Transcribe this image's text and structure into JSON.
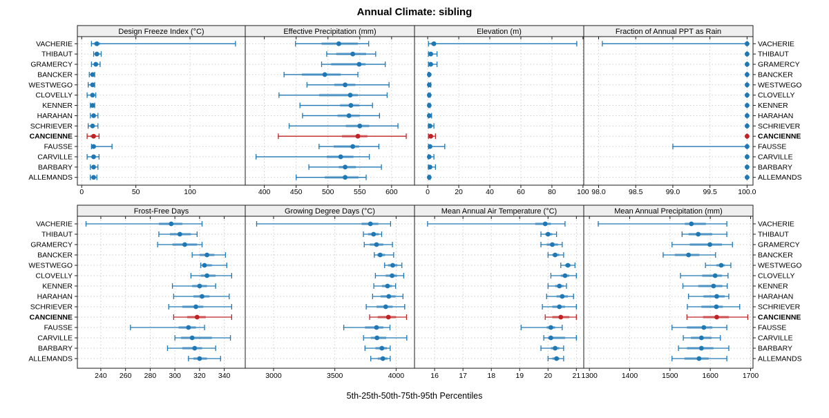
{
  "title": "Annual Climate: sibling",
  "caption": "5th-25th-50th-75th-95th Percentiles",
  "legend_note": "percentile whisker plot",
  "highlight_category": "CANCIENNE",
  "colors": {
    "series_blue": "#1f77b4",
    "highlight_red": "#bf2326",
    "band_alpha": 0.42,
    "grid": "#c9c9c9",
    "panel_border": "#1a1a1a",
    "header_bg": "#efefef",
    "plot_bg": "#ffffff"
  },
  "categories": [
    "VACHERIE",
    "THIBAUT",
    "GRAMERCY",
    "BANCKER",
    "WESTWEGO",
    "CLOVELLY",
    "KENNER",
    "HARAHAN",
    "SCHRIEVER",
    "CANCIENNE",
    "FAUSSE",
    "CARVILLE",
    "BARBARY",
    "ALLEMANDS"
  ],
  "chart_data": [
    {
      "type": "percentile-dotplot",
      "row": 0,
      "col": 0,
      "title": "Design Freeze Index (°C)",
      "xlim": [
        -4,
        151
      ],
      "ticks": [
        0,
        50,
        100
      ],
      "tick_labels": [
        "0",
        "50",
        "100"
      ],
      "percentiles": [
        "5th",
        "25th",
        "50th",
        "75th",
        "95th"
      ],
      "values": [
        [
          9,
          11,
          14,
          17,
          142
        ],
        [
          11,
          13,
          14,
          16,
          18
        ],
        [
          9,
          12,
          13,
          15,
          17
        ],
        [
          7,
          9,
          10,
          11,
          12
        ],
        [
          6,
          9,
          10,
          11,
          12
        ],
        [
          5,
          8,
          10,
          12,
          13
        ],
        [
          8,
          9,
          10,
          11,
          12
        ],
        [
          8,
          10,
          11,
          12,
          15
        ],
        [
          6,
          9,
          10,
          12,
          15
        ],
        [
          5,
          8,
          11,
          13,
          16
        ],
        [
          9,
          10,
          11,
          13,
          28
        ],
        [
          5,
          9,
          11,
          13,
          16
        ],
        [
          8,
          10,
          11,
          12,
          15
        ],
        [
          8,
          10,
          11,
          12,
          14
        ]
      ]
    },
    {
      "type": "percentile-dotplot",
      "row": 0,
      "col": 1,
      "title": "Effective Precipitation (mm)",
      "xlim": [
        370,
        636
      ],
      "ticks": [
        400,
        450,
        500,
        550,
        600
      ],
      "tick_labels": [
        "400",
        "450",
        "500",
        "550",
        "600"
      ],
      "percentiles": [
        "5th",
        "25th",
        "50th",
        "75th",
        "95th"
      ],
      "values": [
        [
          449,
          490,
          517,
          547,
          564
        ],
        [
          498,
          513,
          539,
          560,
          575
        ],
        [
          490,
          505,
          549,
          559,
          590
        ],
        [
          431,
          459,
          495,
          520,
          547
        ],
        [
          467,
          510,
          527,
          543,
          596
        ],
        [
          423,
          486,
          535,
          547,
          593
        ],
        [
          456,
          519,
          536,
          549,
          570
        ],
        [
          460,
          515,
          533,
          550,
          581
        ],
        [
          439,
          528,
          550,
          565,
          610
        ],
        [
          422,
          522,
          547,
          562,
          623
        ],
        [
          486,
          509,
          539,
          549,
          580
        ],
        [
          387,
          498,
          520,
          540,
          565
        ],
        [
          470,
          517,
          527,
          544,
          584
        ],
        [
          450,
          495,
          527,
          548,
          560
        ]
      ]
    },
    {
      "type": "percentile-dotplot",
      "row": 0,
      "col": 2,
      "title": "Elevation (m)",
      "xlim": [
        -8.5,
        100.5
      ],
      "ticks": [
        0,
        20,
        40,
        60,
        80,
        100
      ],
      "tick_labels": [
        "0",
        "20",
        "40",
        "60",
        "80",
        "100"
      ],
      "percentiles": [
        "5th",
        "25th",
        "50th",
        "75th",
        "95th"
      ],
      "values": [
        [
          0.5,
          2,
          4,
          5,
          96
        ],
        [
          0.5,
          1,
          2,
          3,
          6
        ],
        [
          0.5,
          1,
          2,
          3,
          6
        ],
        [
          0.5,
          0.5,
          1,
          1,
          1
        ],
        [
          0.5,
          0.5,
          1,
          1.5,
          2
        ],
        [
          0.5,
          0.5,
          1,
          1,
          1.5
        ],
        [
          0.5,
          0.5,
          1,
          1,
          1.5
        ],
        [
          0.5,
          1,
          1,
          2,
          2.5
        ],
        [
          0.5,
          1,
          1.5,
          2,
          4
        ],
        [
          0.5,
          1,
          2,
          3,
          5
        ],
        [
          0.5,
          1,
          1.5,
          2,
          11
        ],
        [
          0.5,
          1,
          1,
          2,
          4
        ],
        [
          0.5,
          1,
          1.5,
          2,
          5
        ],
        [
          0.5,
          0.5,
          1,
          1,
          1.5
        ]
      ]
    },
    {
      "type": "percentile-dotplot",
      "row": 0,
      "col": 3,
      "title": "Fraction of Annual PPT as Rain",
      "xlim": [
        97.8,
        100.08
      ],
      "ticks": [
        98.0,
        98.5,
        99.0,
        99.5,
        100.0
      ],
      "tick_labels": [
        "98.0",
        "98.5",
        "99.0",
        "99.5",
        "100.0"
      ],
      "percentiles": [
        "5th",
        "25th",
        "50th",
        "75th",
        "95th"
      ],
      "values": [
        [
          98.05,
          100,
          100,
          100,
          100
        ],
        [
          100,
          100,
          100,
          100,
          100
        ],
        [
          100,
          100,
          100,
          100,
          100
        ],
        [
          100,
          100,
          100,
          100,
          100
        ],
        [
          100,
          100,
          100,
          100,
          100
        ],
        [
          100,
          100,
          100,
          100,
          100
        ],
        [
          100,
          100,
          100,
          100,
          100
        ],
        [
          100,
          100,
          100,
          100,
          100
        ],
        [
          100,
          100,
          100,
          100,
          100
        ],
        [
          100,
          100,
          100,
          100,
          100
        ],
        [
          99.0,
          100,
          100,
          100,
          100
        ],
        [
          100,
          100,
          100,
          100,
          100
        ],
        [
          100,
          100,
          100,
          100,
          100
        ],
        [
          100,
          100,
          100,
          100,
          100
        ]
      ]
    },
    {
      "type": "percentile-dotplot",
      "row": 1,
      "col": 0,
      "title": "Frost-Free Days",
      "xlim": [
        221,
        357
      ],
      "ticks": [
        240,
        260,
        280,
        300,
        320,
        340
      ],
      "tick_labels": [
        "240",
        "260",
        "280",
        "300",
        "320",
        "340"
      ],
      "percentiles": [
        "5th",
        "25th",
        "50th",
        "75th",
        "95th"
      ],
      "values": [
        [
          228,
          287,
          297,
          306,
          322
        ],
        [
          287,
          296,
          304,
          313,
          318
        ],
        [
          286,
          298,
          308,
          318,
          322
        ],
        [
          314,
          320,
          326,
          332,
          341
        ],
        [
          321,
          322,
          324,
          330,
          342
        ],
        [
          313,
          321,
          326,
          333,
          346
        ],
        [
          298,
          314,
          320,
          326,
          333
        ],
        [
          299,
          315,
          322,
          328,
          344
        ],
        [
          295,
          306,
          317,
          323,
          346
        ],
        [
          299,
          310,
          318,
          325,
          346
        ],
        [
          264,
          303,
          311,
          317,
          324
        ],
        [
          300,
          305,
          314,
          330,
          345
        ],
        [
          294,
          306,
          316,
          322,
          333
        ],
        [
          311,
          315,
          320,
          326,
          337
        ]
      ]
    },
    {
      "type": "percentile-dotplot",
      "row": 1,
      "col": 1,
      "title": "Growing Degree Days (°C)",
      "xlim": [
        2769,
        4150
      ],
      "ticks": [
        3000,
        3500,
        4000
      ],
      "tick_labels": [
        "3000",
        "3500",
        "4000"
      ],
      "percentiles": [
        "5th",
        "25th",
        "50th",
        "75th",
        "95th"
      ],
      "values": [
        [
          2862,
          3718,
          3790,
          3855,
          3955
        ],
        [
          3733,
          3771,
          3816,
          3859,
          3882
        ],
        [
          3740,
          3785,
          3840,
          3895,
          3970
        ],
        [
          3822,
          3845,
          3870,
          3910,
          3980
        ],
        [
          3906,
          3934,
          3972,
          4010,
          4047
        ],
        [
          3831,
          3915,
          3967,
          4006,
          4062
        ],
        [
          3818,
          3884,
          3930,
          3966,
          3996
        ],
        [
          3808,
          3874,
          3940,
          3996,
          4056
        ],
        [
          3756,
          3840,
          3915,
          3972,
          4070
        ],
        [
          3784,
          3850,
          3937,
          4000,
          4085
        ],
        [
          3573,
          3746,
          3840,
          3896,
          3950
        ],
        [
          3734,
          3794,
          3844,
          3919,
          4087
        ],
        [
          3746,
          3831,
          3884,
          3925,
          3952
        ],
        [
          3793,
          3850,
          3892,
          3930,
          3952
        ]
      ]
    },
    {
      "type": "percentile-dotplot",
      "row": 1,
      "col": 2,
      "title": "Mean Annual Air Temperature (°C)",
      "xlim": [
        15.29,
        21.26
      ],
      "ticks": [
        16,
        17,
        18,
        19,
        20,
        21
      ],
      "tick_labels": [
        "16",
        "17",
        "18",
        "19",
        "20",
        "21"
      ],
      "percentiles": [
        "5th",
        "25th",
        "50th",
        "75th",
        "95th"
      ],
      "values": [
        [
          15.75,
          19.55,
          19.9,
          20.1,
          20.6
        ],
        [
          19.75,
          19.9,
          20.0,
          20.15,
          20.3
        ],
        [
          19.75,
          19.95,
          20.15,
          20.35,
          20.5
        ],
        [
          20.0,
          20.15,
          20.25,
          20.4,
          20.55
        ],
        [
          20.45,
          20.6,
          20.7,
          20.8,
          20.95
        ],
        [
          20.1,
          20.45,
          20.6,
          20.75,
          21.0
        ],
        [
          20.0,
          20.25,
          20.4,
          20.55,
          20.65
        ],
        [
          19.95,
          20.3,
          20.5,
          20.7,
          20.9
        ],
        [
          19.8,
          20.15,
          20.4,
          20.6,
          21.0
        ],
        [
          19.9,
          20.15,
          20.45,
          20.75,
          21.0
        ],
        [
          19.05,
          19.95,
          20.1,
          20.25,
          20.5
        ],
        [
          19.85,
          20.0,
          20.1,
          20.6,
          21.0
        ],
        [
          19.75,
          20.1,
          20.25,
          20.4,
          20.55
        ],
        [
          20.0,
          20.15,
          20.3,
          20.4,
          20.55
        ]
      ]
    },
    {
      "type": "percentile-dotplot",
      "row": 1,
      "col": 3,
      "title": "Mean Annual Precipitation (mm)",
      "xlim": [
        1286,
        1706
      ],
      "ticks": [
        1300,
        1400,
        1500,
        1600,
        1700
      ],
      "tick_labels": [
        "1300",
        "1400",
        "1500",
        "1600",
        "1700"
      ],
      "percentiles": [
        "5th",
        "25th",
        "50th",
        "75th",
        "95th"
      ],
      "values": [
        [
          1322,
          1537,
          1553,
          1589,
          1641
        ],
        [
          1530,
          1546,
          1570,
          1605,
          1641
        ],
        [
          1505,
          1549,
          1599,
          1629,
          1655
        ],
        [
          1483,
          1512,
          1546,
          1573,
          1613
        ],
        [
          1588,
          1615,
          1627,
          1636,
          1651
        ],
        [
          1526,
          1580,
          1612,
          1629,
          1644
        ],
        [
          1532,
          1570,
          1608,
          1630,
          1642
        ],
        [
          1546,
          1583,
          1616,
          1636,
          1646
        ],
        [
          1543,
          1578,
          1615,
          1631,
          1673
        ],
        [
          1542,
          1582,
          1616,
          1646,
          1693
        ],
        [
          1505,
          1542,
          1584,
          1605,
          1641
        ],
        [
          1533,
          1552,
          1578,
          1603,
          1625
        ],
        [
          1521,
          1542,
          1578,
          1608,
          1646
        ],
        [
          1505,
          1536,
          1572,
          1596,
          1641
        ]
      ]
    }
  ]
}
